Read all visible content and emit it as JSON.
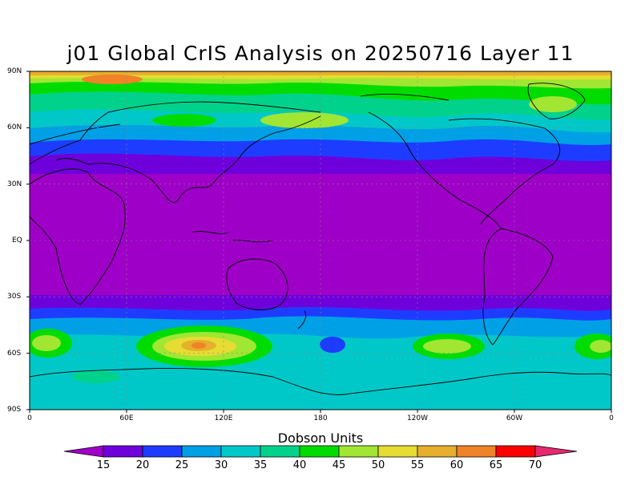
{
  "title": "j01 Global CrIS Analysis on 20250716 Layer 11",
  "lat_labels": [
    "90N",
    "60N",
    "30N",
    "EQ",
    "30S",
    "60S",
    "90S"
  ],
  "lon_labels": [
    "0",
    "60E",
    "120E",
    "180",
    "120W",
    "60W",
    "0"
  ],
  "colorbar": {
    "title": "Dobson Units",
    "levels": [
      15,
      20,
      25,
      30,
      35,
      40,
      45,
      50,
      55,
      60,
      65,
      70
    ],
    "colors": [
      "#9f00c8",
      "#6e00dc",
      "#1e3cff",
      "#00a0e6",
      "#00c8c8",
      "#00d28c",
      "#00dc00",
      "#a0e632",
      "#e6dc32",
      "#e6af2d",
      "#f08228",
      "#fa0000",
      "#e6286e"
    ]
  },
  "map_colors": {
    "c15": "#9f00c8",
    "c20": "#6e00dc",
    "c25": "#1e3cff",
    "c30": "#00a0e6",
    "c35": "#00c8c8",
    "c40": "#00d28c",
    "c45": "#00dc00",
    "c50": "#a0e632",
    "c55": "#e6dc32",
    "c60": "#e6af2d",
    "c65": "#f08228",
    "c70": "#fa0000"
  }
}
